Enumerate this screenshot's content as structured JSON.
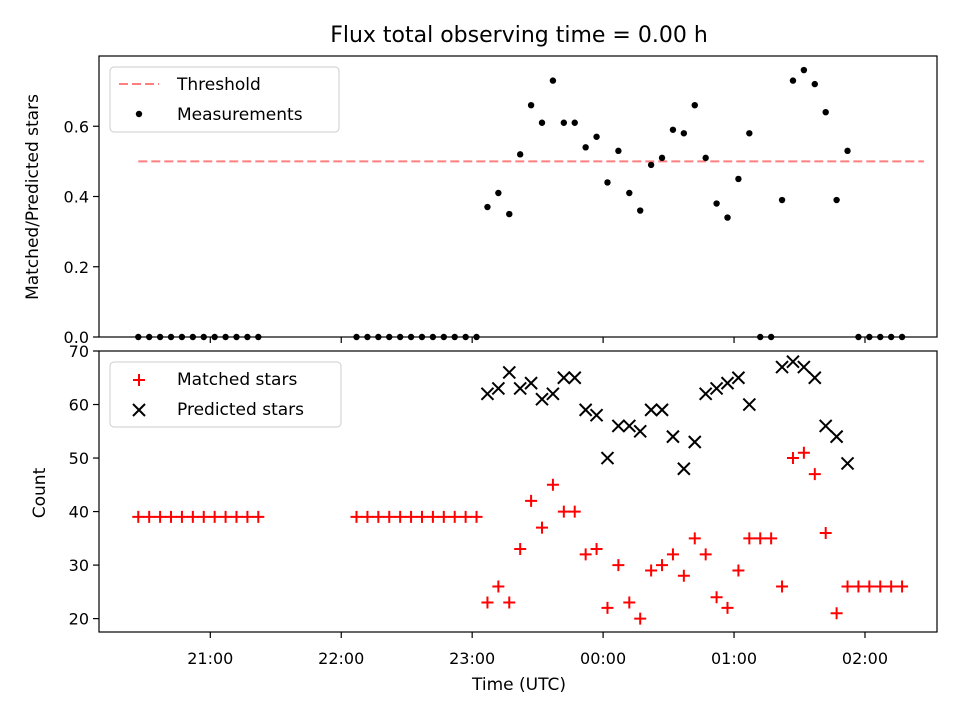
{
  "chart_data": [
    {
      "type": "scatter",
      "title": "Flux total observing time = 0.00 h",
      "xlabel": "",
      "ylabel": "Matched/Predicted stars",
      "ylim": [
        0,
        0.8
      ],
      "yticks": [
        0.0,
        0.2,
        0.4,
        0.6
      ],
      "ytick_labels": [
        "0.0",
        "0.2",
        "0.4",
        "0.6"
      ],
      "legend_placement": "upper-left",
      "grid": false,
      "series": [
        {
          "name": "Threshold",
          "kind": "dashed-line",
          "color": "#ff7f7f",
          "x": [
            "20:27",
            "02:27"
          ],
          "y": [
            0.5,
            0.5
          ]
        },
        {
          "name": "Measurements",
          "kind": "points",
          "color": "#000000",
          "x": [
            "20:27",
            "20:32",
            "20:37",
            "20:42",
            "20:47",
            "20:52",
            "20:57",
            "21:02",
            "21:07",
            "21:12",
            "21:17",
            "21:22",
            "22:07",
            "22:12",
            "22:17",
            "22:22",
            "22:27",
            "22:32",
            "22:37",
            "22:42",
            "22:47",
            "22:52",
            "22:57",
            "23:02",
            "23:07",
            "23:12",
            "23:17",
            "23:22",
            "23:27",
            "23:32",
            "23:37",
            "23:42",
            "23:47",
            "23:52",
            "23:57",
            "00:02",
            "00:07",
            "00:12",
            "00:17",
            "00:22",
            "00:27",
            "00:32",
            "00:37",
            "00:42",
            "00:47",
            "00:52",
            "00:57",
            "01:02",
            "01:07",
            "01:12",
            "01:17",
            "01:22",
            "01:27",
            "01:32",
            "01:37",
            "01:42",
            "01:47",
            "01:52",
            "01:57",
            "02:02",
            "02:07",
            "02:12",
            "02:17"
          ],
          "y": [
            0,
            0,
            0,
            0,
            0,
            0,
            0,
            0,
            0,
            0,
            0,
            0,
            0,
            0,
            0,
            0,
            0,
            0,
            0,
            0,
            0,
            0,
            0,
            0,
            0.37,
            0.41,
            0.35,
            0.52,
            0.66,
            0.61,
            0.73,
            0.61,
            0.61,
            0.54,
            0.57,
            0.44,
            0.53,
            0.41,
            0.36,
            0.49,
            0.51,
            0.59,
            0.58,
            0.66,
            0.51,
            0.38,
            0.34,
            0.45,
            0.58,
            0,
            0,
            0.39,
            0.73,
            0.76,
            0.72,
            0.64,
            0.39,
            0.53,
            0,
            0,
            0,
            0,
            0
          ]
        }
      ]
    },
    {
      "type": "scatter",
      "title": "",
      "xlabel": "Time (UTC)",
      "ylabel": "Count",
      "ylim": [
        17.5,
        70
      ],
      "yticks": [
        20,
        30,
        40,
        50,
        60,
        70
      ],
      "ytick_labels": [
        "20",
        "30",
        "40",
        "50",
        "60",
        "70"
      ],
      "xticks": [
        "21:00",
        "22:00",
        "23:00",
        "00:00",
        "01:00",
        "02:00"
      ],
      "x_range": [
        "20:09",
        "02:33"
      ],
      "legend_placement": "upper-left",
      "grid": false,
      "series": [
        {
          "name": "Matched stars",
          "marker": "+",
          "color": "#ff0000",
          "x": [
            "20:27",
            "20:32",
            "20:37",
            "20:42",
            "20:47",
            "20:52",
            "20:57",
            "21:02",
            "21:07",
            "21:12",
            "21:17",
            "21:22",
            "22:07",
            "22:12",
            "22:17",
            "22:22",
            "22:27",
            "22:32",
            "22:37",
            "22:42",
            "22:47",
            "22:52",
            "22:57",
            "23:02",
            "23:07",
            "23:12",
            "23:17",
            "23:22",
            "23:27",
            "23:32",
            "23:37",
            "23:42",
            "23:47",
            "23:52",
            "23:57",
            "00:02",
            "00:07",
            "00:12",
            "00:17",
            "00:22",
            "00:27",
            "00:32",
            "00:37",
            "00:42",
            "00:47",
            "00:52",
            "00:57",
            "01:02",
            "01:07",
            "01:12",
            "01:17",
            "01:22",
            "01:27",
            "01:32",
            "01:37",
            "01:42",
            "01:47",
            "01:52",
            "01:57",
            "02:02",
            "02:07",
            "02:12",
            "02:17"
          ],
          "y": [
            39,
            39,
            39,
            39,
            39,
            39,
            39,
            39,
            39,
            39,
            39,
            39,
            39,
            39,
            39,
            39,
            39,
            39,
            39,
            39,
            39,
            39,
            39,
            39,
            23,
            26,
            23,
            33,
            42,
            37,
            45,
            40,
            40,
            32,
            33,
            22,
            30,
            23,
            20,
            29,
            30,
            32,
            28,
            35,
            32,
            24,
            22,
            29,
            35,
            35,
            35,
            26,
            50,
            51,
            47,
            36,
            21,
            26,
            26,
            26,
            26,
            26,
            26
          ]
        },
        {
          "name": "Predicted stars",
          "marker": "x",
          "color": "#000000",
          "x": [
            "23:07",
            "23:12",
            "23:17",
            "23:22",
            "23:27",
            "23:32",
            "23:37",
            "23:42",
            "23:47",
            "23:52",
            "23:57",
            "00:02",
            "00:07",
            "00:12",
            "00:17",
            "00:22",
            "00:27",
            "00:32",
            "00:37",
            "00:42",
            "00:47",
            "00:52",
            "00:57",
            "01:02",
            "01:07",
            "01:22",
            "01:27",
            "01:32",
            "01:37",
            "01:42",
            "01:47",
            "01:52"
          ],
          "y": [
            62,
            63,
            66,
            63,
            64,
            61,
            62,
            65,
            65,
            59,
            58,
            50,
            56,
            56,
            55,
            59,
            59,
            54,
            48,
            53,
            62,
            63,
            64,
            65,
            60,
            67,
            68,
            67,
            65,
            56,
            54,
            49
          ]
        }
      ]
    }
  ]
}
